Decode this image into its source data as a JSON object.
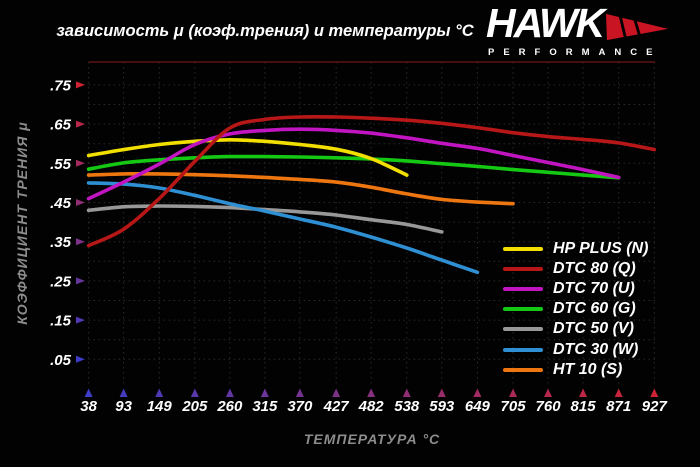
{
  "title": "зависимость μ (коэф.трения) и температуры °C",
  "logo": {
    "brand": "HAWK",
    "sub": "PERFORMANCE",
    "wing_color": "#c81423"
  },
  "colors": {
    "background": "#000000",
    "grid": "#2a2a2a",
    "top_border": "#5c1313",
    "axis_cold": "#3d3dc8",
    "axis_hot": "#cf2333",
    "tick_text": "#ffffff",
    "axis_title_text": "#8c8c8c"
  },
  "chart_data": {
    "type": "line",
    "title": "зависимость μ (коэф.трения) и температуры °C",
    "xlabel": "ТЕМПЕРАТУРА °C",
    "ylabel": "КОЭФФИЦИЕНТ ТРЕНИЯ μ",
    "xlim": [
      38,
      927
    ],
    "ylim": [
      0,
      0.8
    ],
    "grid": true,
    "legend_position": "bottom-right",
    "x_ticks": [
      38,
      93,
      149,
      205,
      260,
      315,
      370,
      427,
      482,
      538,
      593,
      649,
      705,
      760,
      815,
      871,
      927
    ],
    "y_ticks": [
      {
        "label": ".75",
        "value": 0.75
      },
      {
        "label": ".65",
        "value": 0.65
      },
      {
        "label": ".55",
        "value": 0.55
      },
      {
        "label": ".45",
        "value": 0.45
      },
      {
        "label": ".35",
        "value": 0.35
      },
      {
        "label": ".25",
        "value": 0.25
      },
      {
        "label": ".15",
        "value": 0.15
      },
      {
        "label": ".05",
        "value": 0.05
      }
    ],
    "series": [
      {
        "name": "HP PLUS (N)",
        "color": "#f2df00",
        "points": [
          [
            38,
            0.57
          ],
          [
            93,
            0.585
          ],
          [
            149,
            0.598
          ],
          [
            205,
            0.606
          ],
          [
            260,
            0.61
          ],
          [
            315,
            0.606
          ],
          [
            370,
            0.598
          ],
          [
            427,
            0.586
          ],
          [
            482,
            0.562
          ],
          [
            538,
            0.52
          ]
        ]
      },
      {
        "name": "DTC 80 (Q)",
        "color": "#b71717",
        "points": [
          [
            38,
            0.34
          ],
          [
            93,
            0.382
          ],
          [
            149,
            0.46
          ],
          [
            205,
            0.555
          ],
          [
            260,
            0.64
          ],
          [
            315,
            0.662
          ],
          [
            370,
            0.668
          ],
          [
            427,
            0.668
          ],
          [
            482,
            0.665
          ],
          [
            538,
            0.66
          ],
          [
            593,
            0.652
          ],
          [
            649,
            0.641
          ],
          [
            705,
            0.628
          ],
          [
            760,
            0.618
          ],
          [
            815,
            0.611
          ],
          [
            871,
            0.602
          ],
          [
            927,
            0.585
          ]
        ]
      },
      {
        "name": "DTC 70 (U)",
        "color": "#c015c0",
        "points": [
          [
            38,
            0.46
          ],
          [
            93,
            0.502
          ],
          [
            149,
            0.548
          ],
          [
            205,
            0.598
          ],
          [
            260,
            0.625
          ],
          [
            315,
            0.634
          ],
          [
            370,
            0.637
          ],
          [
            427,
            0.634
          ],
          [
            482,
            0.627
          ],
          [
            538,
            0.615
          ],
          [
            593,
            0.601
          ],
          [
            649,
            0.588
          ],
          [
            705,
            0.57
          ],
          [
            760,
            0.552
          ],
          [
            815,
            0.534
          ],
          [
            871,
            0.514
          ]
        ]
      },
      {
        "name": "DTC 60 (G)",
        "color": "#14c814",
        "points": [
          [
            38,
            0.535
          ],
          [
            93,
            0.551
          ],
          [
            149,
            0.559
          ],
          [
            205,
            0.564
          ],
          [
            260,
            0.567
          ],
          [
            315,
            0.567
          ],
          [
            370,
            0.566
          ],
          [
            427,
            0.564
          ],
          [
            482,
            0.561
          ],
          [
            538,
            0.556
          ],
          [
            593,
            0.549
          ],
          [
            649,
            0.542
          ],
          [
            705,
            0.534
          ],
          [
            760,
            0.527
          ],
          [
            815,
            0.52
          ],
          [
            871,
            0.513
          ]
        ]
      },
      {
        "name": "DTC 50 (V)",
        "color": "#989898",
        "points": [
          [
            38,
            0.43
          ],
          [
            93,
            0.439
          ],
          [
            149,
            0.441
          ],
          [
            205,
            0.44
          ],
          [
            260,
            0.437
          ],
          [
            315,
            0.432
          ],
          [
            370,
            0.426
          ],
          [
            427,
            0.418
          ],
          [
            482,
            0.406
          ],
          [
            538,
            0.394
          ],
          [
            593,
            0.375
          ]
        ]
      },
      {
        "name": "DTC 30 (W)",
        "color": "#2e8fd2",
        "points": [
          [
            38,
            0.5
          ],
          [
            93,
            0.497
          ],
          [
            149,
            0.487
          ],
          [
            205,
            0.468
          ],
          [
            260,
            0.447
          ],
          [
            315,
            0.428
          ],
          [
            370,
            0.408
          ],
          [
            427,
            0.387
          ],
          [
            482,
            0.362
          ],
          [
            538,
            0.334
          ],
          [
            593,
            0.303
          ],
          [
            649,
            0.272
          ]
        ]
      },
      {
        "name": "HT 10 (S)",
        "color": "#ee7611",
        "points": [
          [
            38,
            0.52
          ],
          [
            93,
            0.523
          ],
          [
            149,
            0.523
          ],
          [
            205,
            0.521
          ],
          [
            260,
            0.518
          ],
          [
            315,
            0.514
          ],
          [
            370,
            0.509
          ],
          [
            427,
            0.502
          ],
          [
            482,
            0.489
          ],
          [
            538,
            0.472
          ],
          [
            593,
            0.458
          ],
          [
            649,
            0.451
          ],
          [
            705,
            0.447
          ]
        ]
      }
    ]
  }
}
